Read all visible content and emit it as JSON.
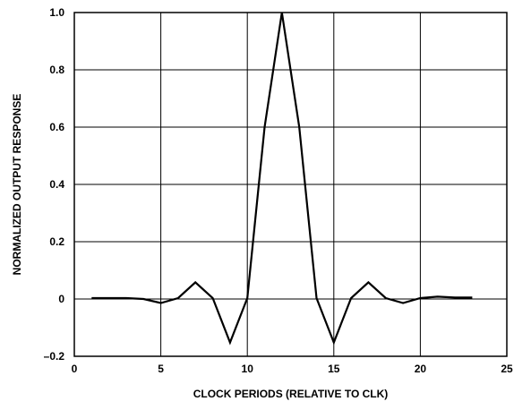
{
  "chart_data": {
    "type": "line",
    "title": "",
    "xlabel": "CLOCK PERIODS (RELATIVE TO CLK)",
    "ylabel": "NORMALIZED OUTPUT RESPONSE",
    "xlim": [
      0,
      25
    ],
    "ylim": [
      -0.2,
      1.0
    ],
    "x_ticks": [
      0,
      5,
      10,
      15,
      20,
      25
    ],
    "x_tick_labels": [
      "0",
      "5",
      "10",
      "15",
      "20",
      "25"
    ],
    "y_ticks": [
      -0.2,
      0,
      0.2,
      0.4,
      0.6,
      0.8,
      1.0
    ],
    "y_tick_labels": [
      "–0.2",
      "0",
      "0.2",
      "0.4",
      "0.6",
      "0.8",
      "1.0"
    ],
    "grid": true,
    "legend": "none",
    "line_color": "#000000",
    "series": [
      {
        "x": [
          1,
          2,
          3,
          4,
          5,
          6,
          7,
          8,
          9,
          10,
          11,
          12,
          13,
          14,
          15,
          16,
          17,
          18,
          19,
          20,
          21,
          22,
          23
        ],
        "values": [
          0.003,
          0.003,
          0.003,
          0.0,
          -0.014,
          0.003,
          0.058,
          0.003,
          -0.152,
          0.003,
          0.6,
          1.0,
          0.6,
          0.003,
          -0.152,
          0.003,
          0.058,
          0.003,
          -0.014,
          0.003,
          0.008,
          0.005,
          0.005
        ]
      }
    ]
  }
}
